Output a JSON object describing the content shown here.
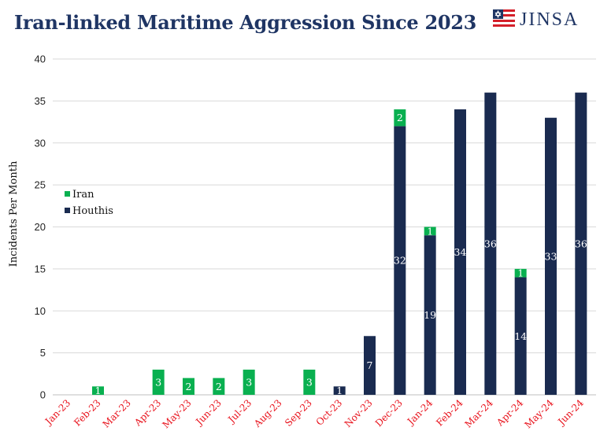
{
  "header": {
    "title": "Iran-linked Maritime Aggression Since 2023",
    "logo_text": "JINSA",
    "logo_icon": "flag-star-icon"
  },
  "colors": {
    "iran": "#09b050",
    "houthis": "#1a2b50",
    "title": "#1f3564",
    "tick_x": "#e8101a",
    "grid": "#d9d9d9"
  },
  "chart_data": {
    "type": "bar",
    "stacked": true,
    "title": "Iran-linked Maritime Aggression Since 2023",
    "ylabel": "Incidents Per Month",
    "xlabel": "",
    "ylim": [
      0,
      40
    ],
    "yticks": [
      0,
      5,
      10,
      15,
      20,
      25,
      30,
      35,
      40
    ],
    "grid": true,
    "legend_position": "left-middle",
    "categories": [
      "Jan-23",
      "Feb-23",
      "Mar-23",
      "Apr-23",
      "May-23",
      "Jun-23",
      "Jul-23",
      "Aug-23",
      "Sep-23",
      "Oct-23",
      "Nov-23",
      "Dec-23",
      "Jan-24",
      "Feb-24",
      "Mar-24",
      "Apr-24",
      "May-24",
      "Jun-24"
    ],
    "series": [
      {
        "name": "Houthis",
        "color": "#1a2b50",
        "values": [
          0,
          0,
          0,
          0,
          0,
          0,
          0,
          0,
          0,
          1,
          7,
          32,
          19,
          34,
          36,
          14,
          33,
          36
        ]
      },
      {
        "name": "Iran",
        "color": "#09b050",
        "values": [
          0,
          1,
          0,
          3,
          2,
          2,
          3,
          0,
          3,
          0,
          0,
          2,
          1,
          0,
          0,
          1,
          0,
          0
        ]
      }
    ],
    "legend": [
      "Iran",
      "Houthis"
    ]
  }
}
